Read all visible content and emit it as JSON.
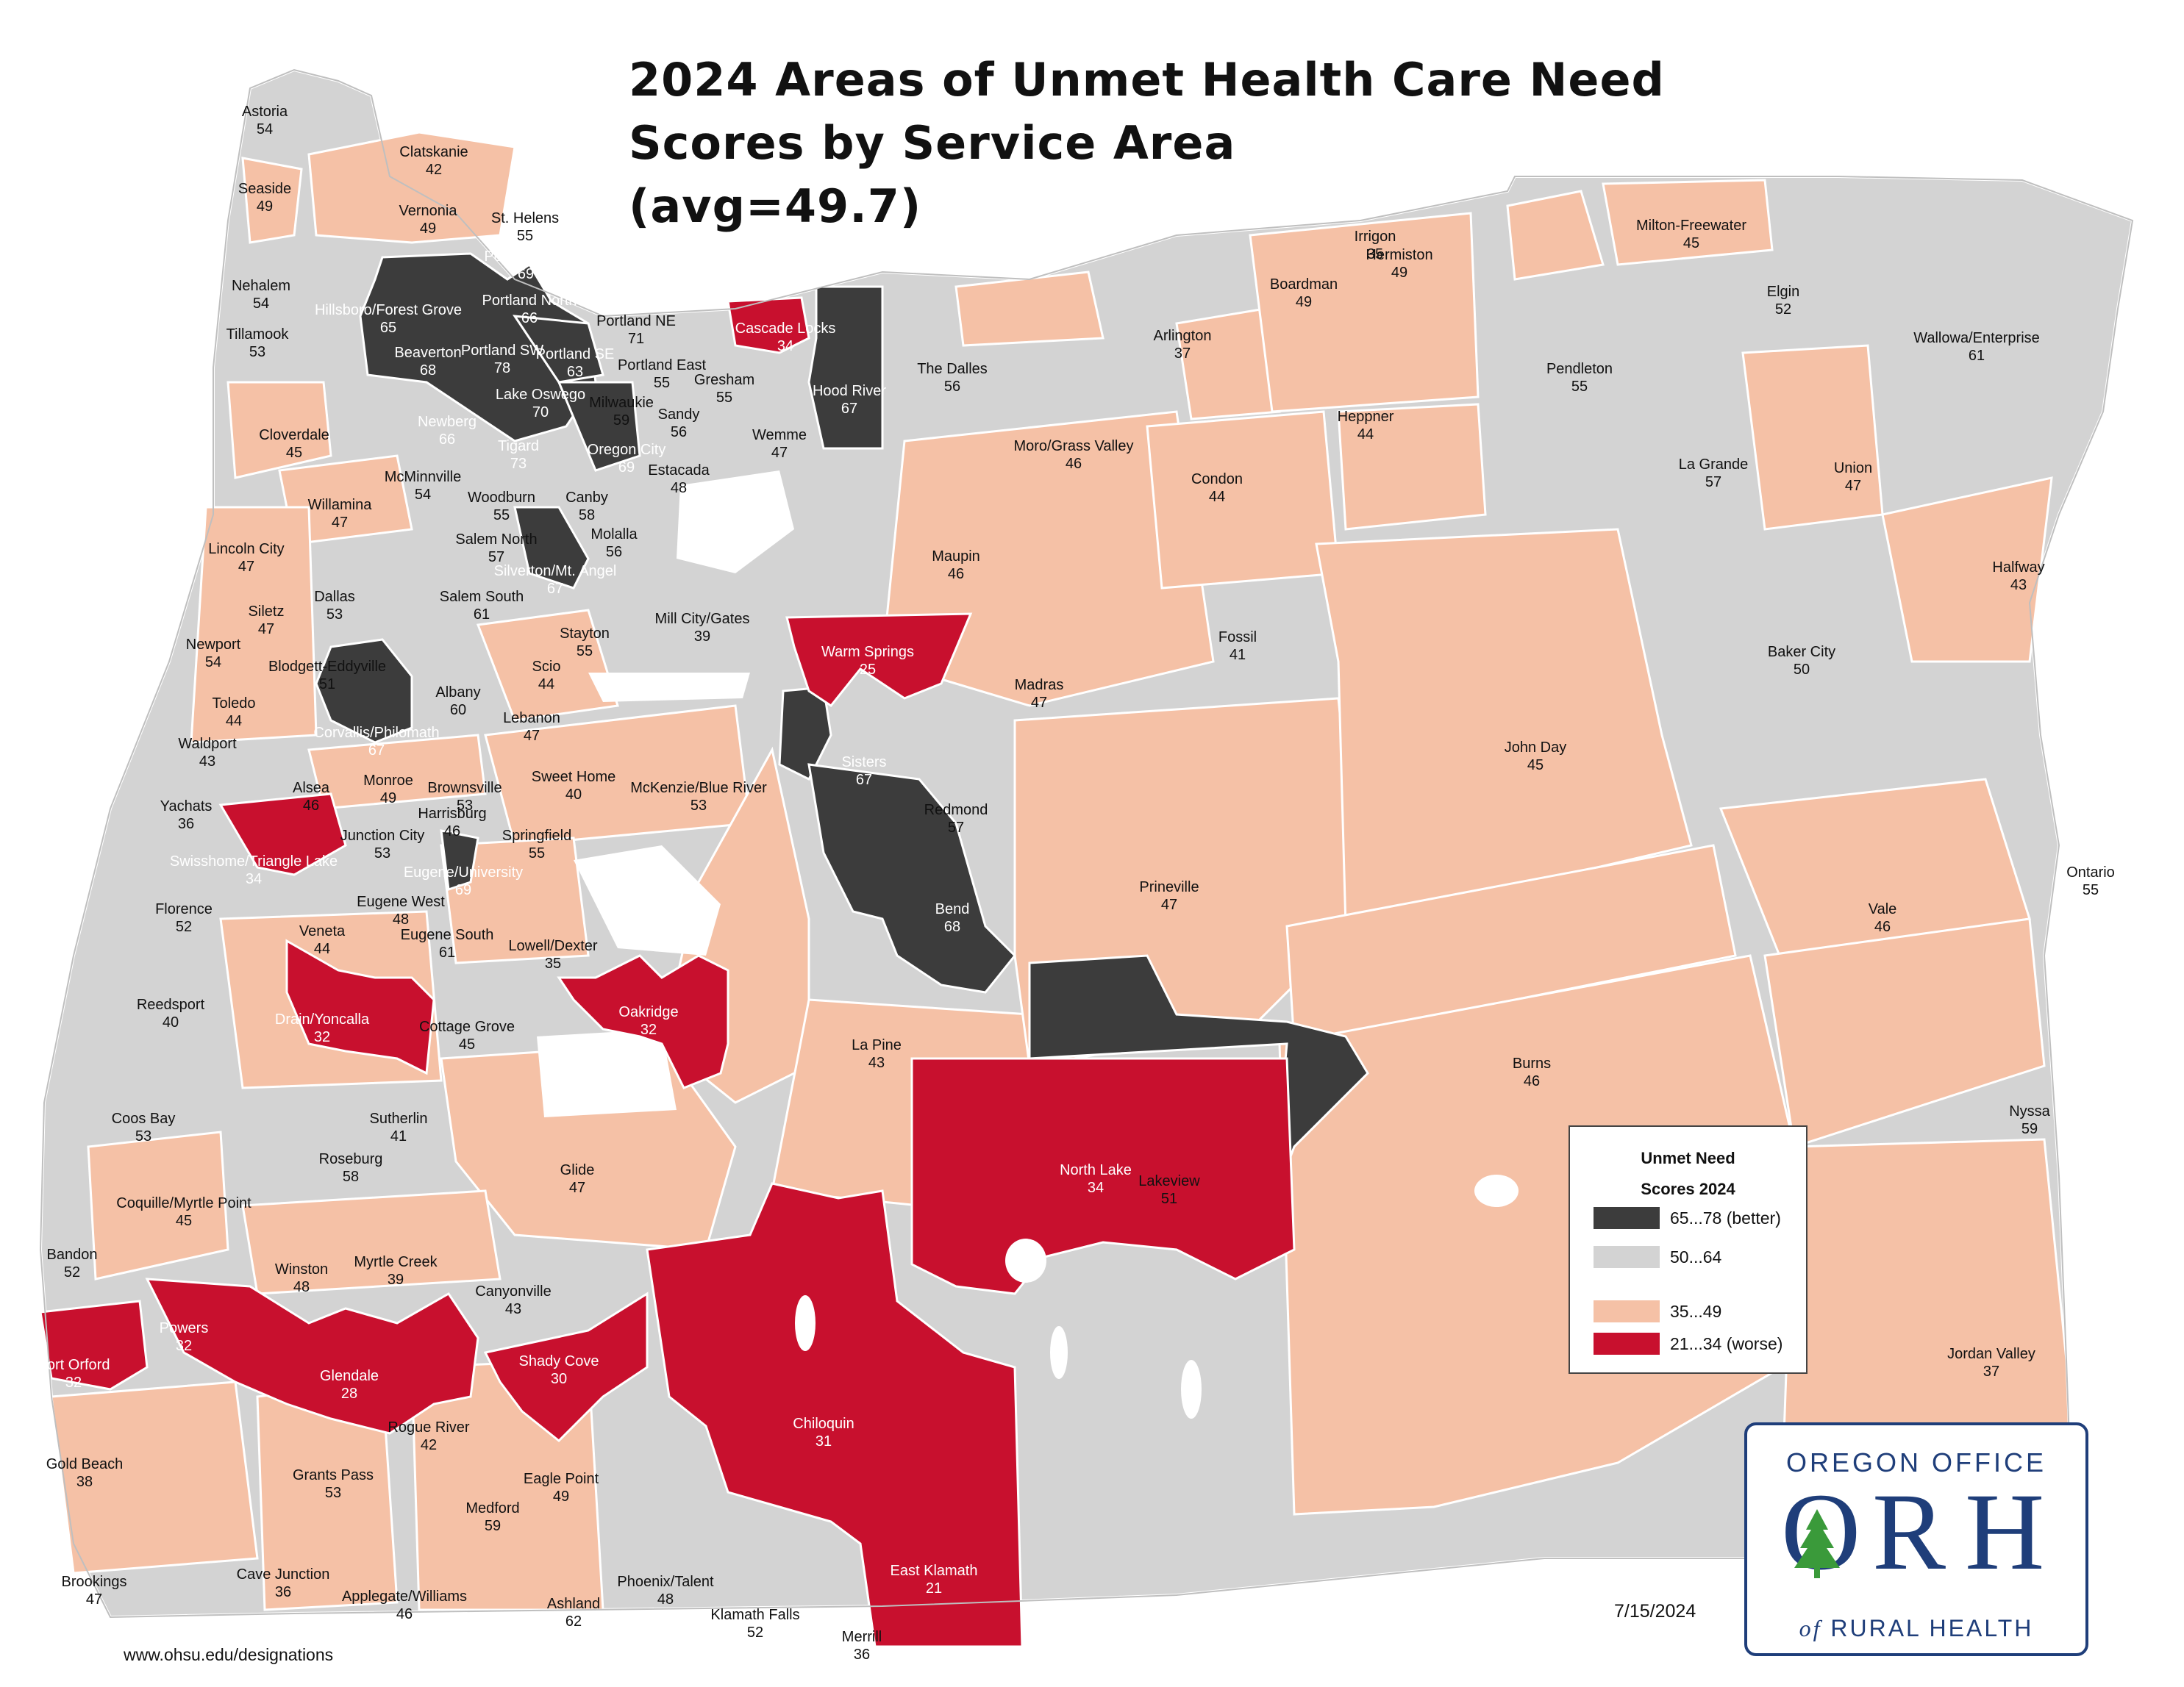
{
  "title": {
    "line1": "2024 Areas of Unmet Health Care Need",
    "line2": "Scores by Service Area",
    "line3": "(avg=49.7)"
  },
  "legend": {
    "title_line1": "Unmet Need",
    "title_line2": "Scores 2024",
    "items": [
      {
        "label": "65...78 (better)",
        "color": "#3c3c3c"
      },
      {
        "label": "50...64",
        "color": "#d3d3d3"
      },
      {
        "label": "35...49",
        "color": "#f5c1a6"
      },
      {
        "label": "21...34 (worse)",
        "color": "#c8102e"
      }
    ]
  },
  "colors": {
    "dark": "#3c3c3c",
    "gray": "#d3d3d3",
    "peach": "#f5c1a6",
    "red": "#c8102e",
    "border": "#ffffff",
    "brand": "#1f3e7a",
    "tree": "#3a9a3a"
  },
  "date": "7/15/2024",
  "url": "www.ohsu.edu/designations",
  "logo": {
    "top": "OREGON OFFICE",
    "letters": [
      "O",
      "R",
      "H"
    ],
    "bottom_prefix": "of",
    "bottom": "RURAL HEALTH"
  },
  "areas": [
    {
      "name": "Astoria",
      "score": "54"
    },
    {
      "name": "Clatskanie",
      "score": "42"
    },
    {
      "name": "Seaside",
      "score": "49"
    },
    {
      "name": "Vernonia",
      "score": "49"
    },
    {
      "name": "St. Helens",
      "score": "55"
    },
    {
      "name": "Portland NW",
      "score": "69"
    },
    {
      "name": "Nehalem",
      "score": "54"
    },
    {
      "name": "Hillsboro/Forest Grove",
      "score": "65"
    },
    {
      "name": "Portland North",
      "score": "66"
    },
    {
      "name": "Portland NE",
      "score": "71"
    },
    {
      "name": "Tillamook",
      "score": "53"
    },
    {
      "name": "Beaverton",
      "score": "68"
    },
    {
      "name": "Portland SW",
      "score": "78"
    },
    {
      "name": "Portland SE",
      "score": "63"
    },
    {
      "name": "Portland East",
      "score": "55"
    },
    {
      "name": "Gresham",
      "score": "55"
    },
    {
      "name": "Cascade Locks",
      "score": "34"
    },
    {
      "name": "Hood River",
      "score": "67"
    },
    {
      "name": "The Dalles",
      "score": "56"
    },
    {
      "name": "Lake Oswego",
      "score": "70"
    },
    {
      "name": "Milwaukie",
      "score": "59"
    },
    {
      "name": "Sandy",
      "score": "56"
    },
    {
      "name": "Newberg",
      "score": "66"
    },
    {
      "name": "Tigard",
      "score": "73"
    },
    {
      "name": "Oregon City",
      "score": "69"
    },
    {
      "name": "Estacada",
      "score": "48"
    },
    {
      "name": "Wemme",
      "score": "47"
    },
    {
      "name": "Cloverdale",
      "score": "45"
    },
    {
      "name": "McMinnville",
      "score": "54"
    },
    {
      "name": "Woodburn",
      "score": "55"
    },
    {
      "name": "Canby",
      "score": "58"
    },
    {
      "name": "Willamina",
      "score": "47"
    },
    {
      "name": "Salem North",
      "score": "57"
    },
    {
      "name": "Molalla",
      "score": "56"
    },
    {
      "name": "Lincoln City",
      "score": "47"
    },
    {
      "name": "Silverton/Mt. Angel",
      "score": "67"
    },
    {
      "name": "Dallas",
      "score": "53"
    },
    {
      "name": "Salem South",
      "score": "61"
    },
    {
      "name": "Siletz",
      "score": "47"
    },
    {
      "name": "Mill City/Gates",
      "score": "39"
    },
    {
      "name": "Newport",
      "score": "54"
    },
    {
      "name": "Stayton",
      "score": "55"
    },
    {
      "name": "Blodgett-Eddyville",
      "score": "51"
    },
    {
      "name": "Scio",
      "score": "44"
    },
    {
      "name": "Toledo",
      "score": "44"
    },
    {
      "name": "Albany",
      "score": "60"
    },
    {
      "name": "Lebanon",
      "score": "47"
    },
    {
      "name": "Waldport",
      "score": "43"
    },
    {
      "name": "Corvallis/Philomath",
      "score": "67"
    },
    {
      "name": "Alsea",
      "score": "46"
    },
    {
      "name": "Monroe",
      "score": "49"
    },
    {
      "name": "Brownsville",
      "score": "53"
    },
    {
      "name": "Sweet Home",
      "score": "40"
    },
    {
      "name": "McKenzie/Blue River",
      "score": "53"
    },
    {
      "name": "Yachats",
      "score": "36"
    },
    {
      "name": "Harrisburg",
      "score": "46"
    },
    {
      "name": "Junction City",
      "score": "53"
    },
    {
      "name": "Springfield",
      "score": "55"
    },
    {
      "name": "Swisshome/Triangle Lake",
      "score": "34"
    },
    {
      "name": "Eugene/University",
      "score": "69"
    },
    {
      "name": "Florence",
      "score": "52"
    },
    {
      "name": "Eugene West",
      "score": "48"
    },
    {
      "name": "Veneta",
      "score": "44"
    },
    {
      "name": "Eugene South",
      "score": "61"
    },
    {
      "name": "Lowell/Dexter",
      "score": "35"
    },
    {
      "name": "Reedsport",
      "score": "40"
    },
    {
      "name": "Drain/Yoncalla",
      "score": "32"
    },
    {
      "name": "Cottage Grove",
      "score": "45"
    },
    {
      "name": "Oakridge",
      "score": "32"
    },
    {
      "name": "Coos Bay",
      "score": "53"
    },
    {
      "name": "Sutherlin",
      "score": "41"
    },
    {
      "name": "Roseburg",
      "score": "58"
    },
    {
      "name": "Glide",
      "score": "47"
    },
    {
      "name": "Coquille/Myrtle Point",
      "score": "45"
    },
    {
      "name": "Bandon",
      "score": "52"
    },
    {
      "name": "Winston",
      "score": "48"
    },
    {
      "name": "Myrtle Creek",
      "score": "39"
    },
    {
      "name": "Canyonville",
      "score": "43"
    },
    {
      "name": "Powers",
      "score": "32"
    },
    {
      "name": "Port Orford",
      "score": "32"
    },
    {
      "name": "Glendale",
      "score": "28"
    },
    {
      "name": "Shady Cove",
      "score": "30"
    },
    {
      "name": "Rogue River",
      "score": "42"
    },
    {
      "name": "Gold Beach",
      "score": "38"
    },
    {
      "name": "Grants Pass",
      "score": "53"
    },
    {
      "name": "Eagle Point",
      "score": "49"
    },
    {
      "name": "Medford",
      "score": "59"
    },
    {
      "name": "Phoenix/Talent",
      "score": "48"
    },
    {
      "name": "Brookings",
      "score": "47"
    },
    {
      "name": "Cave Junction",
      "score": "36"
    },
    {
      "name": "Applegate/Williams",
      "score": "46"
    },
    {
      "name": "Ashland",
      "score": "62"
    },
    {
      "name": "Klamath Falls",
      "score": "52"
    },
    {
      "name": "Merrill",
      "score": "36"
    },
    {
      "name": "East Klamath",
      "score": "21"
    },
    {
      "name": "Chiloquin",
      "score": "31"
    },
    {
      "name": "Lakeview",
      "score": "51"
    },
    {
      "name": "North Lake",
      "score": "34"
    },
    {
      "name": "La Pine",
      "score": "43"
    },
    {
      "name": "Bend",
      "score": "68"
    },
    {
      "name": "Redmond",
      "score": "57"
    },
    {
      "name": "Sisters",
      "score": "67"
    },
    {
      "name": "Prineville",
      "score": "47"
    },
    {
      "name": "Warm Springs",
      "score": "25"
    },
    {
      "name": "Madras",
      "score": "47"
    },
    {
      "name": "Maupin",
      "score": "46"
    },
    {
      "name": "Moro/Grass Valley",
      "score": "46"
    },
    {
      "name": "Condon",
      "score": "44"
    },
    {
      "name": "Arlington",
      "score": "37"
    },
    {
      "name": "Fossil",
      "score": "41"
    },
    {
      "name": "Boardman",
      "score": "49"
    },
    {
      "name": "Irrigon",
      "score": "35"
    },
    {
      "name": "Hermiston",
      "score": "49"
    },
    {
      "name": "Heppner",
      "score": "44"
    },
    {
      "name": "Milton-Freewater",
      "score": "45"
    },
    {
      "name": "Pendleton",
      "score": "55"
    },
    {
      "name": "Elgin",
      "score": "52"
    },
    {
      "name": "Wallowa/Enterprise",
      "score": "61"
    },
    {
      "name": "La Grande",
      "score": "57"
    },
    {
      "name": "Union",
      "score": "47"
    },
    {
      "name": "Halfway",
      "score": "43"
    },
    {
      "name": "Baker City",
      "score": "50"
    },
    {
      "name": "John Day",
      "score": "45"
    },
    {
      "name": "Ontario",
      "score": "55"
    },
    {
      "name": "Vale",
      "score": "46"
    },
    {
      "name": "Burns",
      "score": "46"
    },
    {
      "name": "Nyssa",
      "score": "59"
    },
    {
      "name": "Jordan Valley",
      "score": "37"
    }
  ]
}
